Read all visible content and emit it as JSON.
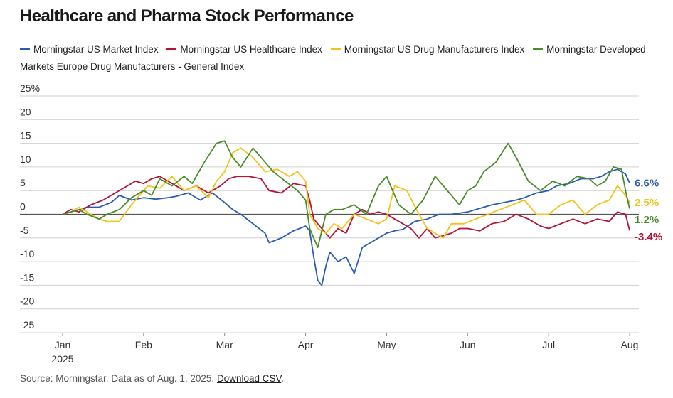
{
  "title": "Healthcare and Pharma Stock Performance",
  "source": {
    "prefix": "Source: Morningstar. Data as of Aug. 1, 2025.",
    "link": "Download CSV",
    "suffix": "."
  },
  "chart_data": {
    "type": "line",
    "title": "Healthcare and Pharma Stock Performance",
    "xlabel": "",
    "ylabel": "",
    "ylim": [
      -25,
      25
    ],
    "y_ticks": [
      {
        "value": 25,
        "label": "25%"
      },
      {
        "value": 20,
        "label": "20"
      },
      {
        "value": 15,
        "label": "15"
      },
      {
        "value": 10,
        "label": "10"
      },
      {
        "value": 5,
        "label": "5"
      },
      {
        "value": 0,
        "label": "0"
      },
      {
        "value": -5,
        "label": "-5"
      },
      {
        "value": -10,
        "label": "-10"
      },
      {
        "value": -15,
        "label": "-15"
      },
      {
        "value": -20,
        "label": "-20"
      },
      {
        "value": -25,
        "label": "-25"
      }
    ],
    "x_ticks": [
      {
        "value": 0,
        "label": "Jan"
      },
      {
        "value": 1,
        "label": "Feb"
      },
      {
        "value": 2,
        "label": "Mar"
      },
      {
        "value": 3,
        "label": "Apr"
      },
      {
        "value": 4,
        "label": "May"
      },
      {
        "value": 5,
        "label": "Jun"
      },
      {
        "value": 6,
        "label": "Jul"
      },
      {
        "value": 7,
        "label": "Aug"
      }
    ],
    "x_year_label": "2025",
    "xlim": [
      0,
      7
    ],
    "grid": true,
    "legend_position": "top",
    "series": [
      {
        "name": "Morningstar US Market Index",
        "color": "#2a5db0",
        "end_label": "6.6%",
        "x": [
          0,
          0.1,
          0.2,
          0.3,
          0.45,
          0.6,
          0.7,
          0.85,
          1.0,
          1.15,
          1.3,
          1.4,
          1.55,
          1.7,
          1.85,
          2.0,
          2.1,
          2.2,
          2.35,
          2.5,
          2.55,
          2.7,
          2.85,
          3.0,
          3.05,
          3.1,
          3.15,
          3.2,
          3.25,
          3.3,
          3.4,
          3.5,
          3.6,
          3.7,
          3.8,
          3.9,
          4.0,
          4.1,
          4.2,
          4.35,
          4.5,
          4.65,
          4.8,
          5.0,
          5.1,
          5.2,
          5.3,
          5.45,
          5.6,
          5.7,
          5.85,
          6.0,
          6.1,
          6.25,
          6.4,
          6.55,
          6.65,
          6.75,
          6.85,
          6.95,
          7.0
        ],
        "values": [
          0,
          0.5,
          1,
          1.5,
          1.5,
          2.5,
          4,
          3,
          3.5,
          3.2,
          3.5,
          3.8,
          4.5,
          3,
          4.5,
          2.5,
          1,
          0,
          -2,
          -4,
          -6,
          -5,
          -3.5,
          -2.5,
          -3.5,
          -9,
          -14,
          -15,
          -11,
          -8,
          -10,
          -9,
          -12.5,
          -7,
          -6,
          -5,
          -4,
          -3.5,
          -3.2,
          -1.5,
          -1,
          0,
          0,
          0.5,
          1,
          1.5,
          2,
          2.5,
          3,
          3.5,
          4.5,
          5,
          6,
          6.5,
          7.5,
          7.5,
          8,
          9,
          9.5,
          8.5,
          6.6
        ]
      },
      {
        "name": "Morningstar US Healthcare Index",
        "color": "#b3123a",
        "end_label": "-3.4%",
        "x": [
          0,
          0.1,
          0.2,
          0.35,
          0.5,
          0.6,
          0.75,
          0.9,
          1.0,
          1.1,
          1.2,
          1.35,
          1.5,
          1.65,
          1.8,
          1.95,
          2.05,
          2.15,
          2.3,
          2.45,
          2.55,
          2.7,
          2.85,
          3.0,
          3.05,
          3.1,
          3.2,
          3.3,
          3.4,
          3.5,
          3.6,
          3.7,
          3.8,
          3.9,
          4.0,
          4.1,
          4.2,
          4.3,
          4.4,
          4.5,
          4.6,
          4.7,
          4.8,
          4.9,
          5.0,
          5.15,
          5.3,
          5.45,
          5.6,
          5.75,
          5.9,
          6.0,
          6.15,
          6.3,
          6.45,
          6.6,
          6.75,
          6.85,
          6.95,
          7.0
        ],
        "values": [
          0,
          1,
          0.5,
          2,
          3,
          4,
          5.5,
          7,
          6.5,
          7.5,
          8,
          6.5,
          5,
          6,
          4.5,
          6,
          7.5,
          8,
          8,
          7.5,
          5,
          4.5,
          6.5,
          6,
          3,
          -1,
          -3,
          -5,
          -3,
          -4,
          0,
          1,
          0,
          0.5,
          0,
          -1,
          -2,
          -3,
          -5,
          -3,
          -5,
          -4.5,
          -4,
          -3,
          -3,
          -3.5,
          -2,
          -1.5,
          0,
          -1,
          -2.5,
          -3,
          -2,
          -1,
          -2,
          -1,
          -1.5,
          0.5,
          0,
          -3.4
        ]
      },
      {
        "name": "Morningstar US Drug Manufacturers Index",
        "color": "#f2c318",
        "end_label": "2.5%",
        "x": [
          0,
          0.1,
          0.2,
          0.35,
          0.45,
          0.55,
          0.7,
          0.85,
          0.95,
          1.05,
          1.2,
          1.35,
          1.5,
          1.65,
          1.8,
          1.9,
          2.0,
          2.1,
          2.2,
          2.35,
          2.5,
          2.65,
          2.8,
          2.9,
          3.0,
          3.05,
          3.15,
          3.25,
          3.35,
          3.45,
          3.6,
          3.75,
          3.9,
          4.0,
          4.1,
          4.25,
          4.4,
          4.5,
          4.6,
          4.7,
          4.8,
          4.95,
          5.1,
          5.25,
          5.4,
          5.55,
          5.7,
          5.85,
          6.0,
          6.15,
          6.3,
          6.45,
          6.6,
          6.75,
          6.85,
          6.95,
          7.0
        ],
        "values": [
          0,
          0.5,
          1.5,
          0,
          -1,
          -1.5,
          -1.5,
          2,
          4,
          6,
          5.5,
          8,
          5,
          6,
          3.5,
          7,
          9,
          13,
          14,
          12,
          9,
          9.5,
          8,
          9,
          7,
          0,
          -3,
          -4,
          -2,
          -3,
          0,
          -1,
          -2,
          -1,
          6,
          5,
          0,
          -3,
          -4,
          -5,
          -2,
          -2,
          -1,
          0,
          1,
          2,
          3,
          0,
          0,
          2,
          3,
          0,
          2,
          3,
          6,
          4,
          2.5
        ]
      },
      {
        "name": "Morningstar Developed Markets Europe Drug Manufacturers - General Index",
        "color": "#4a8c2a",
        "end_label": "1.2%",
        "x": [
          0,
          0.1,
          0.2,
          0.3,
          0.45,
          0.55,
          0.7,
          0.85,
          1.0,
          1.1,
          1.2,
          1.35,
          1.5,
          1.6,
          1.75,
          1.9,
          2.0,
          2.1,
          2.2,
          2.35,
          2.5,
          2.6,
          2.75,
          2.9,
          3.0,
          3.05,
          3.15,
          3.25,
          3.35,
          3.45,
          3.6,
          3.75,
          3.9,
          4.0,
          4.15,
          4.3,
          4.45,
          4.6,
          4.75,
          4.9,
          5.0,
          5.1,
          5.2,
          5.35,
          5.5,
          5.6,
          5.75,
          5.9,
          6.05,
          6.2,
          6.35,
          6.5,
          6.6,
          6.7,
          6.8,
          6.9,
          6.95,
          7.0
        ],
        "values": [
          0,
          0.5,
          1,
          0,
          -1,
          0,
          1,
          3.5,
          5,
          4,
          7.5,
          6,
          8,
          6.5,
          11,
          15,
          15.5,
          12,
          10,
          14,
          11,
          9,
          7,
          5,
          3,
          -3,
          -7,
          0,
          1,
          1,
          2,
          0,
          6,
          8,
          2,
          0,
          3,
          8,
          5,
          2,
          5,
          6,
          9,
          11,
          15,
          12,
          7,
          5,
          7,
          6,
          8,
          7.5,
          6,
          7,
          10,
          9.5,
          5,
          1.2
        ]
      }
    ]
  }
}
